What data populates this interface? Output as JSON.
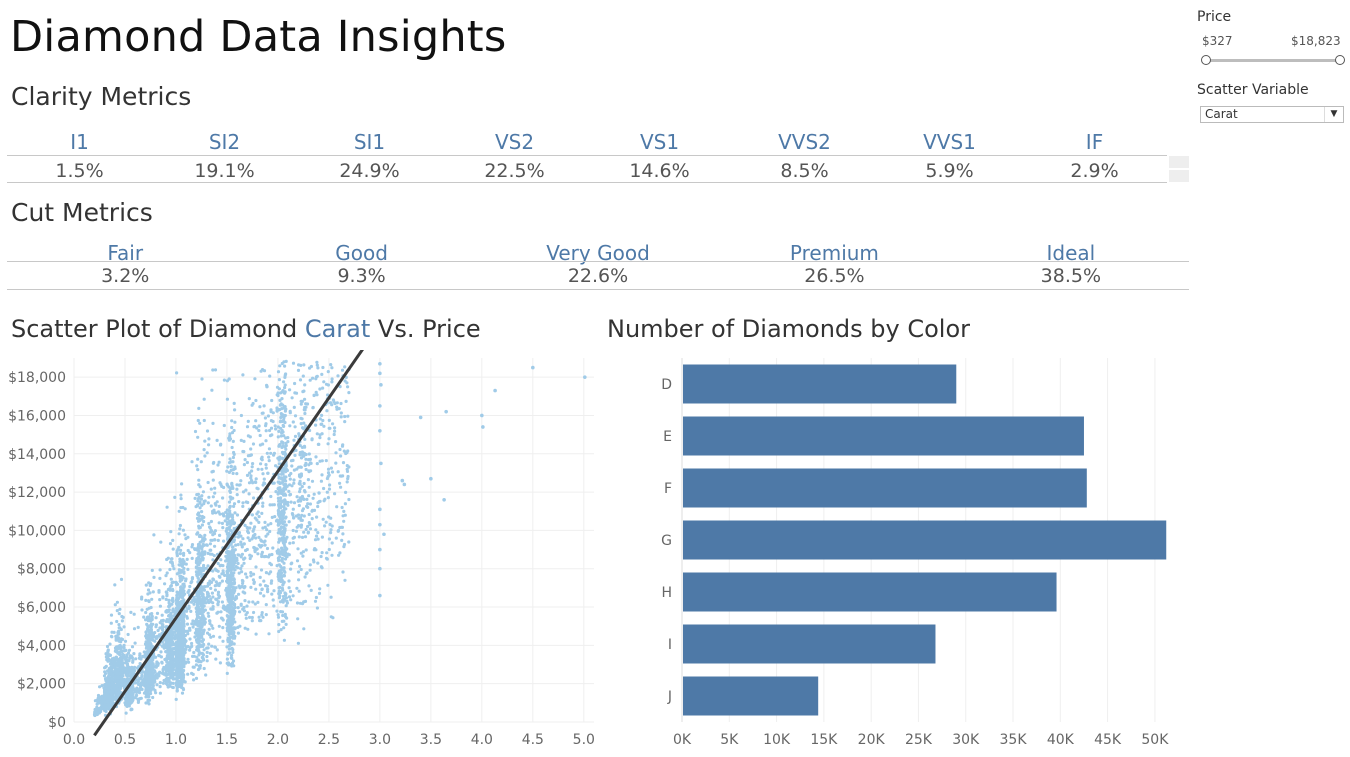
{
  "title": "Diamond Data Insights",
  "clarity": {
    "title": "Clarity Metrics",
    "items": [
      {
        "label": "I1",
        "value": "1.5%"
      },
      {
        "label": "SI2",
        "value": "19.1%"
      },
      {
        "label": "SI1",
        "value": "24.9%"
      },
      {
        "label": "VS2",
        "value": "22.5%"
      },
      {
        "label": "VS1",
        "value": "14.6%"
      },
      {
        "label": "VVS2",
        "value": "8.5%"
      },
      {
        "label": "VVS1",
        "value": "5.9%"
      },
      {
        "label": "IF",
        "value": "2.9%"
      }
    ]
  },
  "cut": {
    "title": "Cut Metrics",
    "items": [
      {
        "label": "Fair",
        "value": "3.2%"
      },
      {
        "label": "Good",
        "value": "9.3%"
      },
      {
        "label": "Very Good",
        "value": "22.6%"
      },
      {
        "label": "Premium",
        "value": "26.5%"
      },
      {
        "label": "Ideal",
        "value": "38.5%"
      }
    ]
  },
  "scatter": {
    "title_prefix": "Scatter Plot of Diamond ",
    "title_variable": "Carat",
    "title_suffix": " Vs. Price"
  },
  "bar": {
    "title": "Number of Diamonds by Color"
  },
  "filters": {
    "price_label": "Price",
    "price_min": "$327",
    "price_max": "$18,823",
    "scatter_variable_label": "Scatter Variable",
    "scatter_variable_value": "Carat"
  },
  "colors": {
    "accent": "#4e79a7",
    "scatter_point": "#a0cbe8",
    "trend_line": "#3b3b3b"
  },
  "chart_data": [
    {
      "type": "scatter",
      "x_ticks": [
        "0.0",
        "0.5",
        "1.0",
        "1.5",
        "2.0",
        "2.5",
        "3.0",
        "3.5",
        "4.0",
        "4.5",
        "5.0"
      ],
      "y_ticks": [
        "$0",
        "$2,000",
        "$4,000",
        "$6,000",
        "$8,000",
        "$10,000",
        "$12,000",
        "$14,000",
        "$16,000",
        "$18,000"
      ],
      "xlim": [
        0,
        5.1
      ],
      "ylim": [
        0,
        19000
      ],
      "grid": true,
      "trend_line": {
        "x0": 0.2,
        "y0": -700,
        "x1": 2.85,
        "y1": 19600
      },
      "outliers": [
        {
          "x": 3.0,
          "y": 18700
        },
        {
          "x": 3.0,
          "y": 18200
        },
        {
          "x": 3.01,
          "y": 17600
        },
        {
          "x": 3.0,
          "y": 16500
        },
        {
          "x": 3.0,
          "y": 15200
        },
        {
          "x": 3.01,
          "y": 13500
        },
        {
          "x": 3.0,
          "y": 11100
        },
        {
          "x": 3.0,
          "y": 10300
        },
        {
          "x": 3.04,
          "y": 9800
        },
        {
          "x": 3.0,
          "y": 8000
        },
        {
          "x": 3.0,
          "y": 6600
        },
        {
          "x": 3.0,
          "y": 9000
        },
        {
          "x": 3.22,
          "y": 12600
        },
        {
          "x": 3.24,
          "y": 12400
        },
        {
          "x": 3.4,
          "y": 15900
        },
        {
          "x": 3.5,
          "y": 12700
        },
        {
          "x": 3.65,
          "y": 16200
        },
        {
          "x": 3.63,
          "y": 11600
        },
        {
          "x": 4.0,
          "y": 16000
        },
        {
          "x": 4.01,
          "y": 15400
        },
        {
          "x": 4.13,
          "y": 17300
        },
        {
          "x": 4.5,
          "y": 18500
        },
        {
          "x": 5.01,
          "y": 18000
        }
      ]
    },
    {
      "type": "bar",
      "orientation": "horizontal",
      "categories": [
        "D",
        "E",
        "F",
        "G",
        "H",
        "I",
        "J"
      ],
      "values": [
        29000,
        42500,
        42800,
        51200,
        39600,
        26800,
        14400
      ],
      "x_ticks": [
        "0K",
        "5K",
        "10K",
        "15K",
        "20K",
        "25K",
        "30K",
        "35K",
        "40K",
        "45K",
        "50K"
      ],
      "xlim": [
        0,
        53500
      ],
      "grid": true
    }
  ]
}
